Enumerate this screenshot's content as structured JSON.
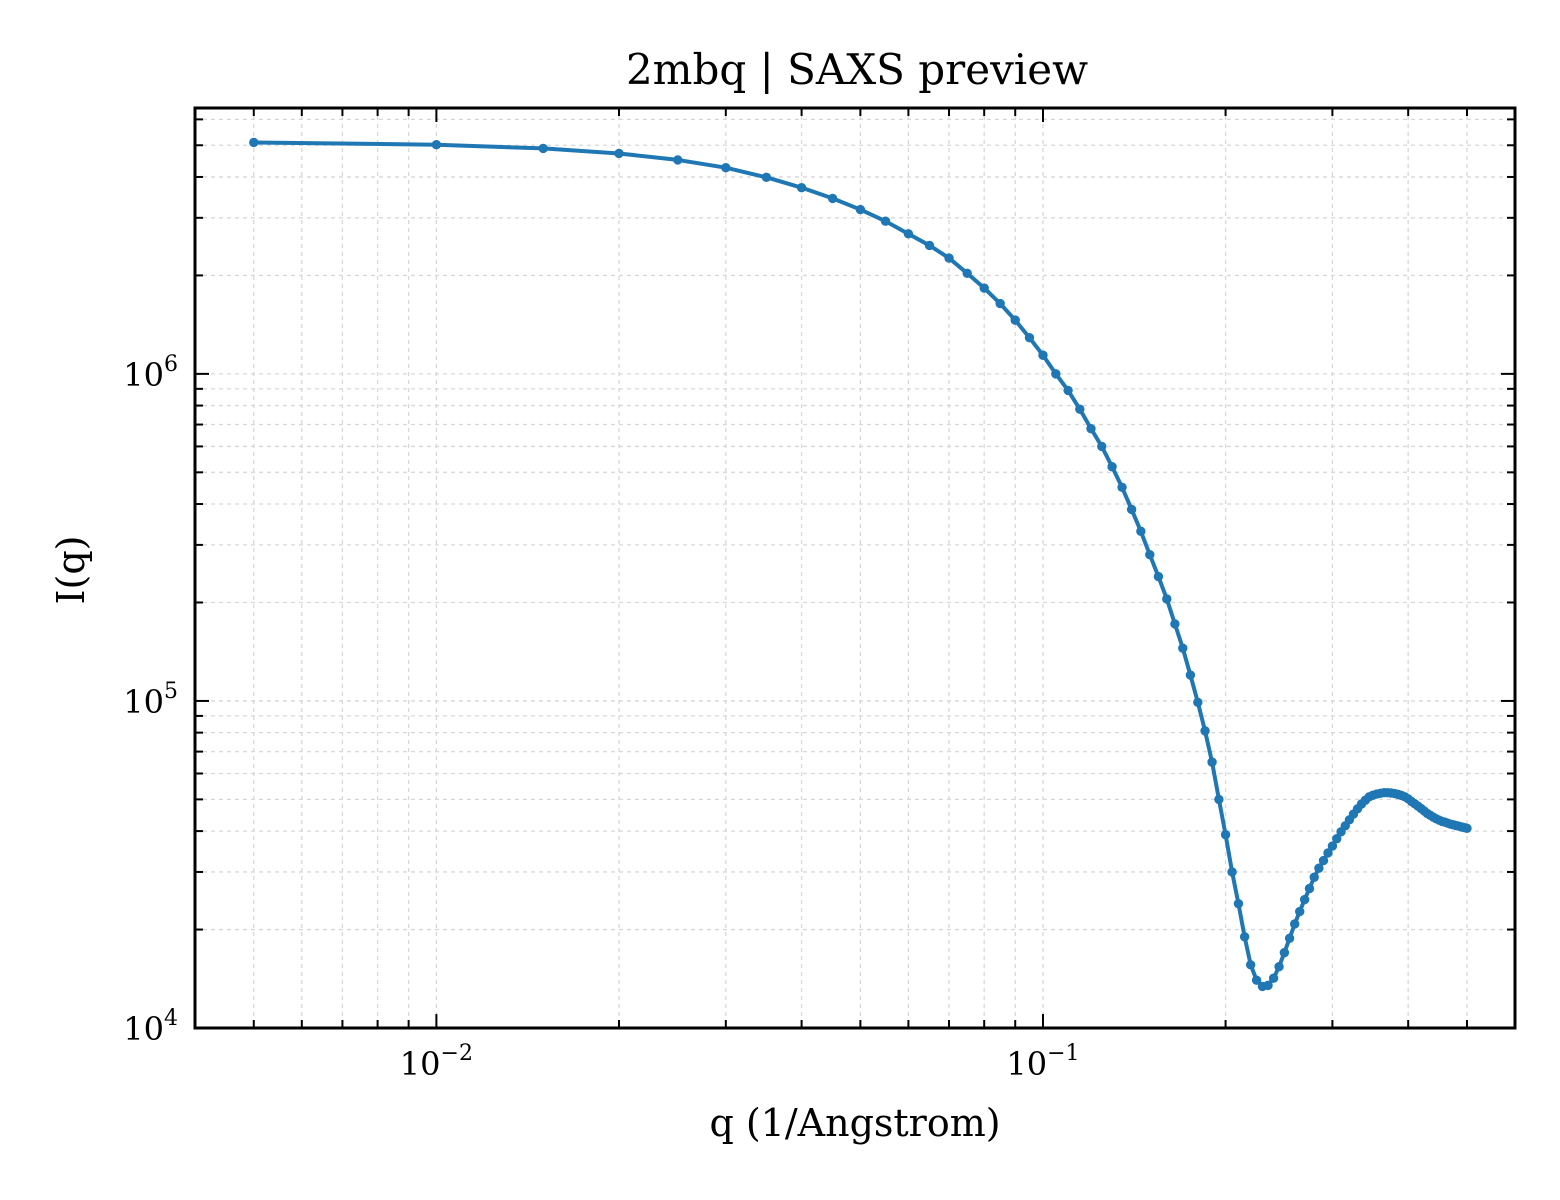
{
  "chart_data": {
    "type": "line",
    "title": "2mbq | SAXS preview",
    "xlabel": "q (1/Angstrom)",
    "ylabel": "I(q)",
    "xscale": "log",
    "yscale": "log",
    "xlim": [
      0.004,
      0.6
    ],
    "ylim": [
      10000,
      6500000
    ],
    "grid": true,
    "legend": "none",
    "x_ticks": [
      {
        "value": 0.01,
        "base": "10",
        "exp": "−2"
      },
      {
        "value": 0.1,
        "base": "10",
        "exp": "−1"
      }
    ],
    "y_ticks": [
      {
        "value": 10000,
        "base": "10",
        "exp": "4"
      },
      {
        "value": 100000,
        "base": "10",
        "exp": "5"
      },
      {
        "value": 1000000,
        "base": "10",
        "exp": "6"
      }
    ],
    "series": [
      {
        "color": "#1f77b4",
        "marker": "circle",
        "x": [
          0.005,
          0.01,
          0.015,
          0.02,
          0.025,
          0.03,
          0.035,
          0.04,
          0.045,
          0.05,
          0.055,
          0.06,
          0.065,
          0.07,
          0.075,
          0.08,
          0.085,
          0.09,
          0.095,
          0.1,
          0.105,
          0.11,
          0.115,
          0.12,
          0.125,
          0.13,
          0.135,
          0.14,
          0.145,
          0.15,
          0.155,
          0.16,
          0.165,
          0.17,
          0.175,
          0.18,
          0.185,
          0.19,
          0.195,
          0.2,
          0.205,
          0.21,
          0.215,
          0.22,
          0.225,
          0.23,
          0.235,
          0.24,
          0.245,
          0.25,
          0.255,
          0.26,
          0.265,
          0.27,
          0.275,
          0.28,
          0.285,
          0.29,
          0.295,
          0.3,
          0.305,
          0.31,
          0.315,
          0.32,
          0.325,
          0.33,
          0.335,
          0.34,
          0.345,
          0.35,
          0.355,
          0.36,
          0.365,
          0.37,
          0.375,
          0.38,
          0.385,
          0.39,
          0.395,
          0.4,
          0.405,
          0.41,
          0.415,
          0.42,
          0.425,
          0.43,
          0.435,
          0.44,
          0.445,
          0.45,
          0.455,
          0.46,
          0.465,
          0.47,
          0.475,
          0.48,
          0.485,
          0.49,
          0.495,
          0.5
        ],
        "y": [
          5100000,
          5020000,
          4890000,
          4720000,
          4510000,
          4270000,
          3990000,
          3710000,
          3440000,
          3180000,
          2930000,
          2680000,
          2470000,
          2260000,
          2030000,
          1830000,
          1640000,
          1460000,
          1290000,
          1140000,
          1000000,
          890000,
          780000,
          680000,
          600000,
          520000,
          450000,
          385000,
          330000,
          280000,
          240000,
          205000,
          172000,
          145000,
          120000,
          99000,
          81000,
          65000,
          50000,
          39000,
          30000,
          24000,
          19000,
          15600,
          14000,
          13400,
          13500,
          14200,
          15400,
          17000,
          18800,
          20800,
          22700,
          24700,
          26700,
          28900,
          30800,
          32500,
          34300,
          36000,
          37900,
          39800,
          41500,
          43300,
          45100,
          46800,
          48400,
          49700,
          50900,
          51500,
          51900,
          52200,
          52400,
          52400,
          52300,
          52100,
          51800,
          51400,
          50900,
          50200,
          49300,
          48500,
          47700,
          46900,
          46100,
          45300,
          44700,
          44100,
          43600,
          43200,
          42800,
          42600,
          42300,
          42000,
          41800,
          41600,
          41400,
          41200,
          41000,
          40800
        ]
      }
    ]
  }
}
